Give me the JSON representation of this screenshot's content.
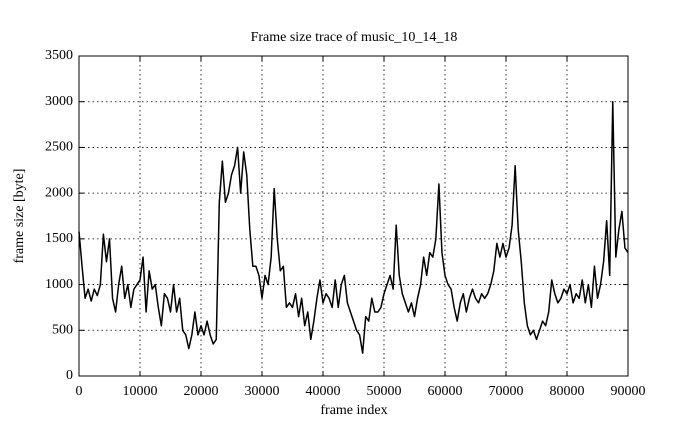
{
  "chart_data": {
    "type": "line",
    "title": "Frame size trace of music_10_14_18",
    "x_label": "frame index",
    "y_label": "frame size [byte]",
    "xlim": [
      0,
      90000
    ],
    "ylim": [
      0,
      3500
    ],
    "xticks": [
      0,
      10000,
      20000,
      30000,
      40000,
      50000,
      60000,
      70000,
      80000,
      90000
    ],
    "yticks": [
      0,
      500,
      1000,
      1500,
      2000,
      2500,
      3000,
      3500
    ],
    "grid": true,
    "x": [
      0,
      500,
      1000,
      1500,
      2000,
      2500,
      3000,
      3500,
      4000,
      4500,
      5000,
      5500,
      6000,
      6500,
      7000,
      7500,
      8000,
      8500,
      9000,
      9500,
      10000,
      10500,
      11000,
      11500,
      12000,
      12500,
      13000,
      13500,
      14000,
      14500,
      15000,
      15500,
      16000,
      16500,
      17000,
      17500,
      18000,
      18500,
      19000,
      19500,
      20000,
      20500,
      21000,
      21500,
      22000,
      22500,
      23000,
      23500,
      24000,
      24500,
      25000,
      25500,
      26000,
      26500,
      27000,
      27500,
      28000,
      28500,
      29000,
      29500,
      30000,
      30500,
      31000,
      31500,
      32000,
      32500,
      33000,
      33500,
      34000,
      34500,
      35000,
      35500,
      36000,
      36500,
      37000,
      37500,
      38000,
      38500,
      39000,
      39500,
      40000,
      40500,
      41000,
      41500,
      42000,
      42500,
      43000,
      43500,
      44000,
      44500,
      45000,
      45500,
      46000,
      46500,
      47000,
      47500,
      48000,
      48500,
      49000,
      49500,
      50000,
      50500,
      51000,
      51500,
      52000,
      52500,
      53000,
      53500,
      54000,
      54500,
      55000,
      55500,
      56000,
      56500,
      57000,
      57500,
      58000,
      58500,
      59000,
      59500,
      60000,
      60500,
      61000,
      61500,
      62000,
      62500,
      63000,
      63500,
      64000,
      64500,
      65000,
      65500,
      66000,
      66500,
      67000,
      67500,
      68000,
      68500,
      69000,
      69500,
      70000,
      70500,
      71000,
      71500,
      72000,
      72500,
      73000,
      73500,
      74000,
      74500,
      75000,
      75500,
      76000,
      76500,
      77000,
      77500,
      78000,
      78500,
      79000,
      79500,
      80000,
      80500,
      81000,
      81500,
      82000,
      82500,
      83000,
      83500,
      84000,
      84500,
      85000,
      85500,
      86000,
      86500,
      87000,
      87500,
      88000,
      88500,
      89000,
      89500,
      90000
    ],
    "series": [
      {
        "color": "#000000",
        "values": [
          1580,
          1200,
          850,
          950,
          820,
          950,
          880,
          1000,
          1550,
          1250,
          1500,
          850,
          700,
          1000,
          1200,
          850,
          1000,
          750,
          950,
          1000,
          1050,
          1300,
          700,
          1150,
          950,
          1000,
          750,
          550,
          900,
          850,
          700,
          1000,
          700,
          850,
          500,
          450,
          300,
          450,
          700,
          450,
          550,
          450,
          600,
          450,
          350,
          400,
          1900,
          2350,
          1900,
          2000,
          2200,
          2300,
          2500,
          2000,
          2450,
          2200,
          1600,
          1200,
          1200,
          1100,
          850,
          1100,
          1000,
          1300,
          2050,
          1500,
          1150,
          1200,
          750,
          800,
          750,
          900,
          650,
          850,
          550,
          700,
          400,
          600,
          850,
          1050,
          800,
          900,
          850,
          750,
          1050,
          750,
          1000,
          1100,
          800,
          700,
          600,
          500,
          450,
          250,
          650,
          600,
          850,
          700,
          700,
          750,
          900,
          1000,
          1100,
          950,
          1650,
          1100,
          900,
          800,
          700,
          800,
          650,
          850,
          1000,
          1300,
          1100,
          1350,
          1300,
          1500,
          2100,
          1350,
          1100,
          1000,
          950,
          750,
          600,
          800,
          900,
          700,
          850,
          950,
          850,
          800,
          900,
          850,
          900,
          1000,
          1150,
          1450,
          1300,
          1450,
          1300,
          1400,
          1650,
          2300,
          1600,
          1250,
          800,
          550,
          450,
          500,
          400,
          500,
          600,
          550,
          700,
          1050,
          900,
          800,
          850,
          950,
          900,
          1000,
          800,
          900,
          850,
          1050,
          800,
          1000,
          750,
          1200,
          850,
          1000,
          1250,
          1700,
          1100,
          3000,
          1300,
          1600,
          1800,
          1400,
          1350
        ]
      }
    ]
  }
}
